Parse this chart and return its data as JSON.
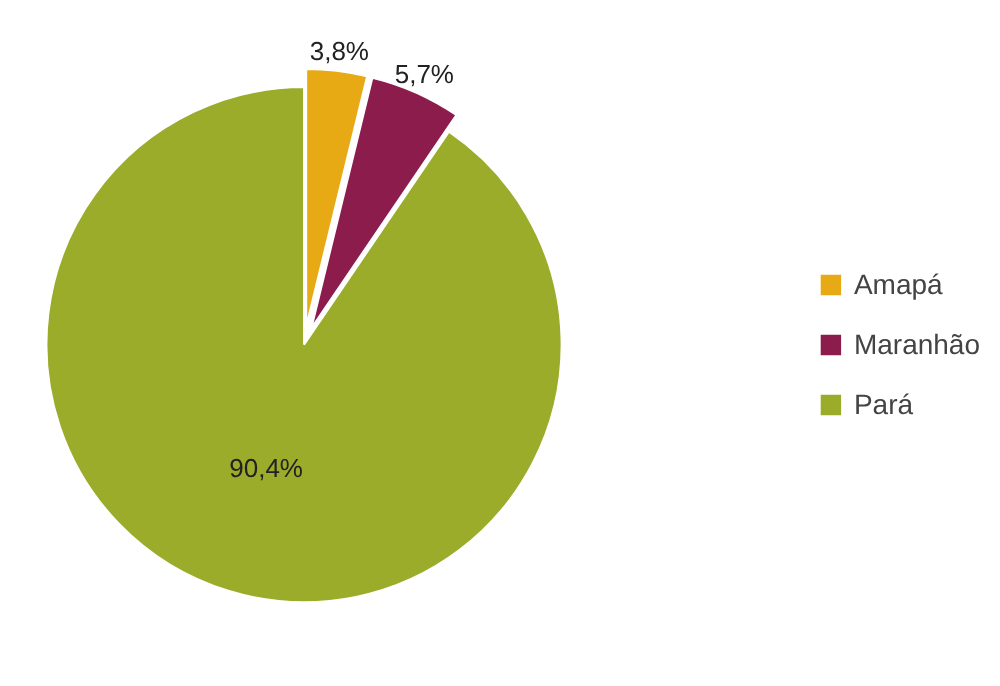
{
  "chart_data": {
    "type": "pie",
    "categories": [
      "Amapá",
      "Maranhão",
      "Pará"
    ],
    "values": [
      3.8,
      5.7,
      90.4
    ],
    "colors": [
      "#e8aa14",
      "#8c1c4c",
      "#9aac2a"
    ],
    "value_labels": [
      "3,8%",
      "5,7%",
      "90,4%"
    ],
    "legend": "right"
  }
}
